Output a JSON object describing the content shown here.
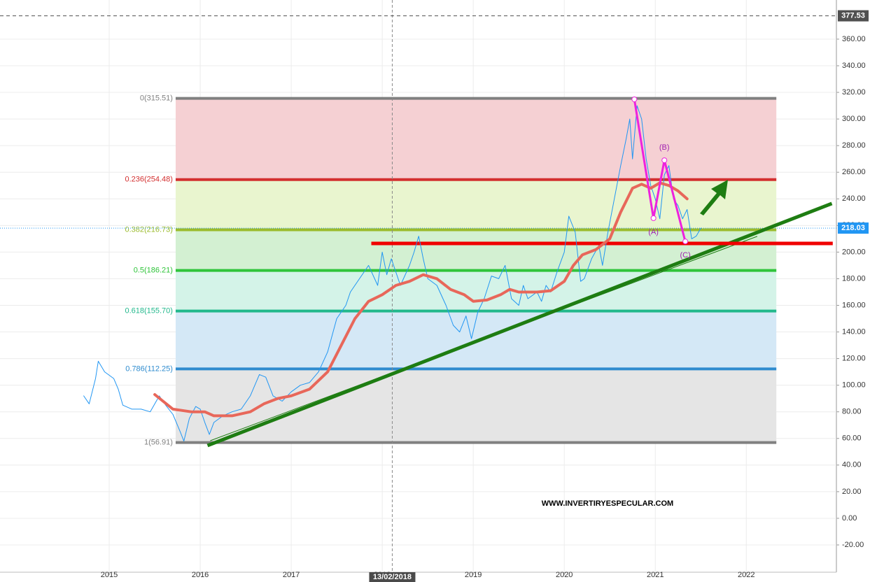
{
  "chart_data": {
    "type": "line",
    "xlim": [
      2013.8,
      2022.99
    ],
    "xticks": [
      2015,
      2016,
      2017,
      2018,
      2019,
      2020,
      2021,
      2022
    ],
    "ylim": [
      -40.5,
      389.4
    ],
    "yticks": [
      {
        "value": -20,
        "label": "-20.00"
      },
      {
        "value": 0,
        "label": "0.00"
      },
      {
        "value": 20,
        "label": "20.00"
      },
      {
        "value": 40,
        "label": "40.00"
      },
      {
        "value": 60,
        "label": "60.00"
      },
      {
        "value": 80,
        "label": "80.00"
      },
      {
        "value": 100,
        "label": "100.00"
      },
      {
        "value": 120,
        "label": "120.00"
      },
      {
        "value": 140,
        "label": "140.00"
      },
      {
        "value": 160,
        "label": "160.00"
      },
      {
        "value": 180,
        "label": "180.00"
      },
      {
        "value": 200,
        "label": "200.00"
      },
      {
        "value": 220,
        "label": "220.00"
      },
      {
        "value": 240,
        "label": "240.00"
      },
      {
        "value": 260,
        "label": "260.00"
      },
      {
        "value": 280,
        "label": "280.00"
      },
      {
        "value": 300,
        "label": "300.00"
      },
      {
        "value": 320,
        "label": "320.00"
      },
      {
        "value": 340,
        "label": "340.00"
      },
      {
        "value": 360,
        "label": "360.00"
      }
    ],
    "grid": true,
    "fib_range": [
      2015.73,
      2022.33
    ],
    "fib_levels": [
      {
        "label": "0(315.51)",
        "value": 315.51,
        "color": "#808080",
        "zone_color": "#f5d0d3"
      },
      {
        "label": "0.236(254.48)",
        "value": 254.48,
        "color": "#d32f2f",
        "zone_color": "#e9f5cf"
      },
      {
        "label": "0.382(216.73)",
        "value": 216.73,
        "color": "#9bbb2c",
        "zone_color": "#d3f0d2"
      },
      {
        "label": "0.5(186.21)",
        "value": 186.21,
        "color": "#2fc43a",
        "zone_color": "#d4f3e8"
      },
      {
        "label": "0.618(155.70)",
        "value": 155.7,
        "color": "#22b88c",
        "zone_color": "#d4e8f6"
      },
      {
        "label": "0.786(112.25)",
        "value": 112.25,
        "color": "#2f8ccf",
        "zone_color": "#e5e5e5"
      },
      {
        "label": "1(56.91)",
        "value": 56.91,
        "color": "#808080"
      }
    ],
    "series": [
      {
        "color": "#2196f3",
        "width": 1,
        "x": [
          2014.72,
          2014.78,
          2014.85,
          2014.88,
          2014.95,
          2015.05,
          2015.1,
          2015.15,
          2015.25,
          2015.35,
          2015.45,
          2015.55,
          2015.62,
          2015.7,
          2015.78,
          2015.82,
          2015.88,
          2015.95,
          2016.0,
          2016.05,
          2016.1,
          2016.15,
          2016.25,
          2016.35,
          2016.45,
          2016.55,
          2016.65,
          2016.72,
          2016.8,
          2016.9,
          2017.0,
          2017.1,
          2017.2,
          2017.3,
          2017.4,
          2017.5,
          2017.6,
          2017.65,
          2017.75,
          2017.85,
          2017.95,
          2018.0,
          2018.05,
          2018.1,
          2018.2,
          2018.3,
          2018.35,
          2018.4,
          2018.45,
          2018.5,
          2018.6,
          2018.7,
          2018.78,
          2018.85,
          2018.92,
          2018.98,
          2019.05,
          2019.12,
          2019.2,
          2019.28,
          2019.35,
          2019.42,
          2019.5,
          2019.55,
          2019.6,
          2019.7,
          2019.75,
          2019.8,
          2019.85,
          2019.92,
          2020.0,
          2020.05,
          2020.12,
          2020.18,
          2020.22,
          2020.3,
          2020.38,
          2020.42,
          2020.48,
          2020.55,
          2020.62,
          2020.68,
          2020.72,
          2020.75,
          2020.8,
          2020.85,
          2020.9,
          2020.95,
          2021.0,
          2021.05,
          2021.1,
          2021.15,
          2021.2,
          2021.25,
          2021.3,
          2021.35,
          2021.4,
          2021.45,
          2021.5
        ],
        "values": [
          92,
          86,
          105,
          118,
          110,
          105,
          97,
          85,
          82,
          82,
          80,
          92,
          85,
          78,
          65,
          58,
          75,
          84,
          82,
          72,
          63,
          72,
          77,
          80,
          82,
          92,
          108,
          106,
          92,
          88,
          95,
          100,
          102,
          110,
          125,
          150,
          160,
          170,
          180,
          190,
          175,
          200,
          183,
          195,
          175,
          190,
          200,
          212,
          195,
          180,
          175,
          160,
          145,
          140,
          152,
          135,
          155,
          165,
          182,
          180,
          190,
          165,
          160,
          175,
          165,
          170,
          163,
          175,
          170,
          185,
          200,
          227,
          215,
          178,
          180,
          195,
          205,
          190,
          215,
          240,
          265,
          285,
          300,
          270,
          310,
          300,
          270,
          250,
          240,
          225,
          258,
          265,
          240,
          235,
          225,
          232,
          210,
          212,
          218
        ]
      },
      {
        "color": "#e8675a",
        "width": 4,
        "x": [
          2015.5,
          2015.7,
          2015.9,
          2016.05,
          2016.15,
          2016.35,
          2016.55,
          2016.7,
          2016.85,
          2017.0,
          2017.2,
          2017.4,
          2017.55,
          2017.7,
          2017.85,
          2018.0,
          2018.15,
          2018.3,
          2018.45,
          2018.6,
          2018.75,
          2018.9,
          2019.0,
          2019.15,
          2019.3,
          2019.4,
          2019.5,
          2019.7,
          2019.85,
          2020.0,
          2020.1,
          2020.2,
          2020.35,
          2020.5,
          2020.62,
          2020.75,
          2020.85,
          2020.95,
          2021.05,
          2021.15,
          2021.25,
          2021.35
        ],
        "values": [
          93,
          82,
          80,
          80,
          77,
          77,
          80,
          86,
          90,
          92,
          97,
          110,
          130,
          150,
          163,
          168,
          175,
          178,
          183,
          180,
          172,
          168,
          163,
          164,
          168,
          172,
          170,
          170,
          171,
          178,
          190,
          198,
          202,
          210,
          230,
          248,
          251,
          248,
          252,
          250,
          246,
          240
        ]
      }
    ],
    "trendlines": [
      {
        "x": [
          2016.08,
          2022.94
        ],
        "values": [
          54.7,
          236.5
        ],
        "color": "#1e7d12",
        "width": 5
      },
      {
        "x": [
          2016.11,
          2022.12
        ],
        "values": [
          58.3,
          211.8
        ],
        "color": "#1e7d12",
        "width": 1
      },
      {
        "x": [
          2017.88,
          2022.95
        ],
        "values": [
          206.5,
          206.5
        ],
        "color": "#f00000",
        "width": 5
      }
    ],
    "wave": {
      "x": [
        2020.77,
        2020.98,
        2021.1,
        2021.33
      ],
      "values": [
        314.8,
        225.5,
        269,
        208
      ],
      "color": "#ee22dd",
      "labels": [
        "(A)",
        "(B)",
        "(C)"
      ],
      "label_color": "#a020b0"
    },
    "crosshair": {
      "x": 2018.11,
      "label": "13/02/2018"
    },
    "price_markers": [
      {
        "value": 377.53,
        "color": "#505050"
      },
      {
        "value": 218.03,
        "color": "#2196f3"
      }
    ],
    "watermark": "WWW.INVERTIRYESPECULAR.COM"
  }
}
